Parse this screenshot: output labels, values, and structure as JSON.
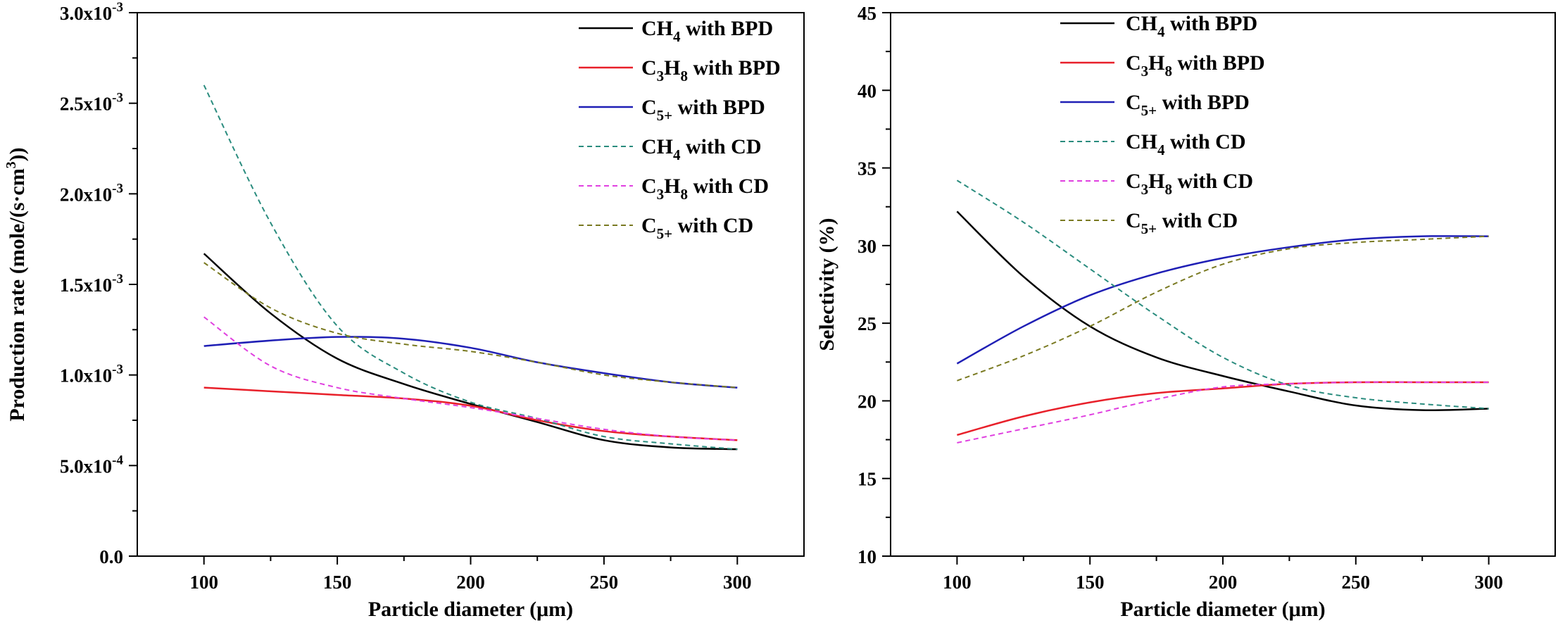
{
  "chart_data": [
    {
      "type": "line",
      "title": "",
      "xlabel": "Particle diameter (μm)",
      "ylabel": "Production rate  (mole/(s·cm3))",
      "ylabel_parts": {
        "main": "Production rate  (mole/(s·cm",
        "sup": "3",
        "end": "))"
      },
      "xlim": [
        75,
        325
      ],
      "ylim": [
        0,
        0.003
      ],
      "xticks": [
        100,
        150,
        200,
        250,
        300
      ],
      "yticks": [
        0,
        0.0005,
        0.001,
        0.0015,
        0.002,
        0.0025,
        0.003
      ],
      "ytick_labels": [
        {
          "value": 0,
          "text": "0.0",
          "exp": ""
        },
        {
          "value": 0.0005,
          "text": "5.0x10",
          "exp": "-4"
        },
        {
          "value": 0.001,
          "text": "1.0x10",
          "exp": "-3"
        },
        {
          "value": 0.0015,
          "text": "1.5x10",
          "exp": "-3"
        },
        {
          "value": 0.002,
          "text": "2.0x10",
          "exp": "-3"
        },
        {
          "value": 0.0025,
          "text": "2.5x10",
          "exp": "-3"
        },
        {
          "value": 0.003,
          "text": "3.0x10",
          "exp": "-3"
        }
      ],
      "legend_position": "top-right",
      "x": [
        100,
        125,
        150,
        175,
        200,
        225,
        250,
        275,
        300
      ],
      "series": [
        {
          "name": "CH4  with BPD",
          "label_parts": [
            "CH",
            "4",
            "  with BPD"
          ],
          "color": "#000000",
          "dashed": false,
          "values": [
            0.00167,
            0.00134,
            0.00109,
            0.00095,
            0.00084,
            0.00074,
            0.00064,
            0.0006,
            0.00059
          ]
        },
        {
          "name": "C3H8 with BPD",
          "label_parts": [
            "C",
            "3",
            "H",
            "8",
            " with BPD"
          ],
          "color": "#e8202a",
          "dashed": false,
          "values": [
            0.00093,
            0.00091,
            0.00089,
            0.00087,
            0.00083,
            0.00075,
            0.00069,
            0.00066,
            0.00064
          ]
        },
        {
          "name": "C5+  with BPD",
          "label_parts": [
            "C",
            "5+",
            "  with BPD"
          ],
          "color": "#1f1fb5",
          "dashed": false,
          "values": [
            0.00116,
            0.00119,
            0.00121,
            0.0012,
            0.00115,
            0.00107,
            0.00101,
            0.00096,
            0.00093
          ]
        },
        {
          "name": "CH4  with CD",
          "label_parts": [
            "CH",
            "4",
            "  with CD"
          ],
          "color": "#2a8c7e",
          "dashed": true,
          "values": [
            0.0026,
            0.00184,
            0.00127,
            0.00101,
            0.00085,
            0.00076,
            0.00066,
            0.00062,
            0.00059
          ]
        },
        {
          "name": "C3H8 with CD",
          "label_parts": [
            "C",
            "3",
            "H",
            "8",
            " with CD"
          ],
          "color": "#e040e0",
          "dashed": true,
          "values": [
            0.00132,
            0.00105,
            0.00093,
            0.00087,
            0.00082,
            0.00076,
            0.0007,
            0.00066,
            0.00064
          ]
        },
        {
          "name": "C5+  with CD",
          "label_parts": [
            "C",
            "5+",
            "  with CD"
          ],
          "color": "#7a7a22",
          "dashed": true,
          "values": [
            0.00162,
            0.00137,
            0.00123,
            0.00117,
            0.00113,
            0.00107,
            0.001,
            0.00096,
            0.00093
          ]
        }
      ]
    },
    {
      "type": "line",
      "title": "",
      "xlabel": "Particle diameter (μm)",
      "ylabel": "Selectivity (%)",
      "xlim": [
        75,
        325
      ],
      "ylim": [
        10,
        45
      ],
      "xticks": [
        100,
        150,
        200,
        250,
        300
      ],
      "yticks": [
        10,
        15,
        20,
        25,
        30,
        35,
        40,
        45
      ],
      "legend_position": "top-left",
      "x": [
        100,
        125,
        150,
        175,
        200,
        225,
        250,
        275,
        300
      ],
      "series": [
        {
          "name": "CH4  with BPD",
          "label_parts": [
            "CH",
            "4",
            "  with BPD"
          ],
          "color": "#000000",
          "dashed": false,
          "values": [
            32.2,
            28.0,
            24.8,
            22.8,
            21.6,
            20.6,
            19.7,
            19.4,
            19.5
          ]
        },
        {
          "name": "C3H8 with BPD",
          "label_parts": [
            "C",
            "3",
            "H",
            "8",
            " with BPD"
          ],
          "color": "#e8202a",
          "dashed": false,
          "values": [
            17.8,
            19.0,
            19.9,
            20.5,
            20.8,
            21.1,
            21.2,
            21.2,
            21.2
          ]
        },
        {
          "name": "C5+  with BPD",
          "label_parts": [
            "C",
            "5+",
            "  with BPD"
          ],
          "color": "#1f1fb5",
          "dashed": false,
          "values": [
            22.4,
            24.8,
            26.8,
            28.2,
            29.2,
            29.9,
            30.4,
            30.6,
            30.6
          ]
        },
        {
          "name": "CH4  with CD",
          "label_parts": [
            "CH",
            "4",
            "  with CD"
          ],
          "color": "#2a8c7e",
          "dashed": true,
          "values": [
            34.2,
            31.5,
            28.5,
            25.5,
            22.8,
            21.0,
            20.2,
            19.8,
            19.5
          ]
        },
        {
          "name": "C3H8 with CD",
          "label_parts": [
            "C",
            "3",
            "H",
            "8",
            " with CD"
          ],
          "color": "#e040e0",
          "dashed": true,
          "values": [
            17.3,
            18.2,
            19.1,
            20.1,
            20.9,
            21.1,
            21.2,
            21.2,
            21.2
          ]
        },
        {
          "name": "C5+  with CD",
          "label_parts": [
            "C",
            "5+",
            "  with CD"
          ],
          "color": "#7a7a22",
          "dashed": true,
          "values": [
            21.3,
            22.9,
            24.8,
            27.0,
            28.8,
            29.8,
            30.2,
            30.4,
            30.6
          ]
        }
      ]
    }
  ]
}
